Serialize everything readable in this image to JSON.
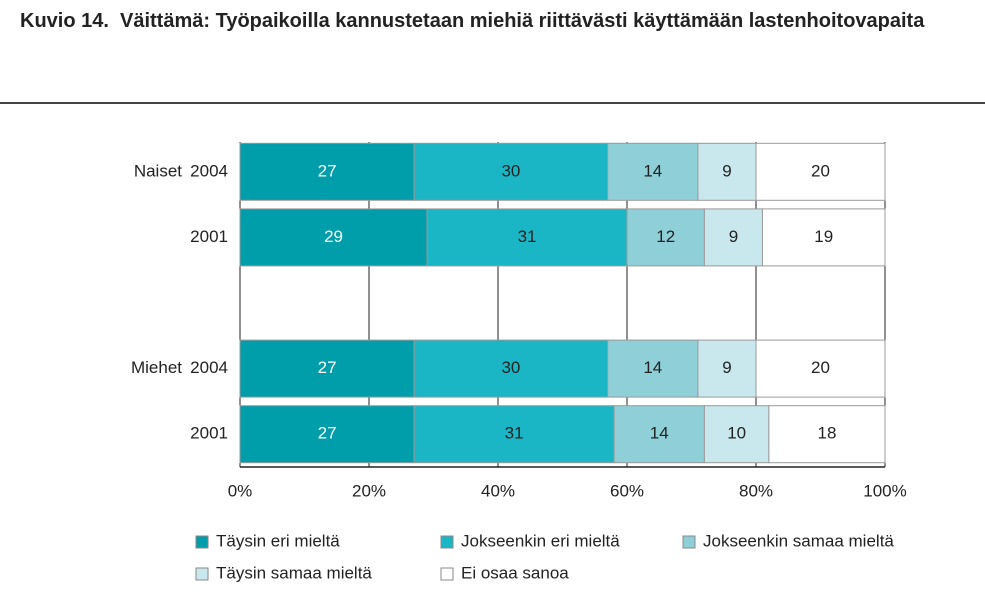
{
  "chart_data": {
    "type": "stacked_barh",
    "label": "Kuvio 14.",
    "title": "Väittämä: Työpaikoilla kannustetaan miehiä riittävästi käyttämään lastenhoitovapaita",
    "groups": [
      "Naiset",
      null,
      null,
      "Miehet",
      null
    ],
    "categories": [
      "2004",
      "2001",
      null,
      "2004",
      "2001"
    ],
    "series": [
      {
        "name": "Täysin eri mieltä",
        "color": "#009dab",
        "values": [
          27,
          29,
          null,
          27,
          27
        ]
      },
      {
        "name": "Jokseenkin eri mieltä",
        "color": "#1bb6c6",
        "values": [
          30,
          31,
          null,
          30,
          31
        ]
      },
      {
        "name": "Jokseenkin samaa mieltä",
        "color": "#8ecfd8",
        "values": [
          14,
          12,
          null,
          14,
          14
        ]
      },
      {
        "name": "Täysin samaa mieltä",
        "color": "#c9e8ee",
        "values": [
          9,
          9,
          null,
          9,
          10
        ]
      },
      {
        "name": "Ei osaa sanoa",
        "color": "#ffffff",
        "values": [
          20,
          19,
          null,
          20,
          18
        ]
      }
    ],
    "xlim": [
      0,
      100
    ],
    "xticks": [
      {
        "value": 0,
        "label": "0%"
      },
      {
        "value": 20,
        "label": "20%"
      },
      {
        "value": 40,
        "label": "40%"
      },
      {
        "value": 60,
        "label": "60%"
      },
      {
        "value": 80,
        "label": "80%"
      },
      {
        "value": 100,
        "label": "100%"
      }
    ],
    "grid": true
  }
}
